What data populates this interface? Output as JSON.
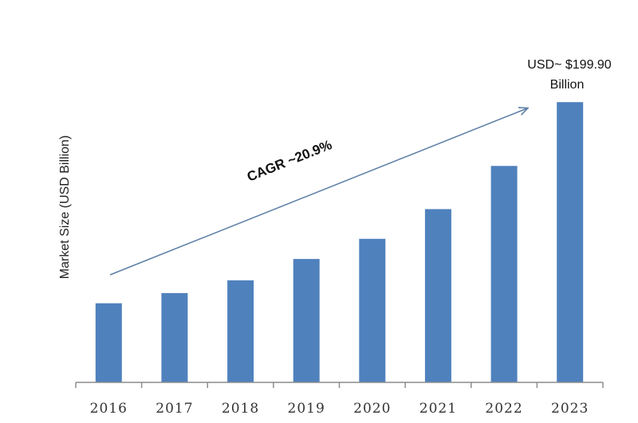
{
  "chart_data": {
    "type": "bar",
    "categories": [
      "2016",
      "2017",
      "2018",
      "2019",
      "2020",
      "2021",
      "2022",
      "2023"
    ],
    "values": [
      56.4,
      63.7,
      72.8,
      88.0,
      102.4,
      123.6,
      154.4,
      199.9
    ],
    "ylabel": "Market Size (USD Billion)",
    "xlabel": "",
    "ylim": [
      0,
      200
    ],
    "bar_color": "#4f81bd",
    "arrow_color": "#5b7fa6",
    "grid": false,
    "annotations": {
      "cagr": "CAGR ~20.9%",
      "last_value_line1": "USD~ $199.90",
      "last_value_line2": "Billion"
    }
  }
}
